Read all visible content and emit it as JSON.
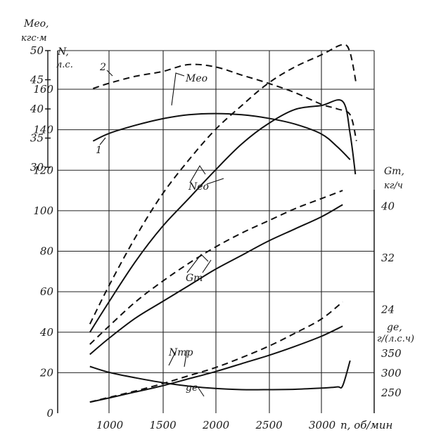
{
  "chart_data": {
    "type": "line",
    "x": {
      "label": "n, об/мин",
      "ticks": [
        1000,
        1500,
        2000,
        2500,
        3000
      ],
      "range": [
        800,
        3350
      ]
    },
    "axes": {
      "power": {
        "title": "N,",
        "unit": "л.с.",
        "ticks": [
          0,
          20,
          40,
          60,
          80,
          100,
          120,
          140,
          160
        ],
        "range": [
          0,
          180
        ]
      },
      "torque": {
        "title": "Mео,",
        "unit": "кгс·м",
        "ticks": [
          30,
          35,
          40,
          45,
          50
        ],
        "range": [
          30,
          50
        ]
      },
      "fuel": {
        "title": "Gт,",
        "unit": "кг/ч",
        "ticks": [
          24,
          32,
          40
        ],
        "range": [
          8,
          48
        ]
      },
      "sfc": {
        "title": "ge,",
        "unit": "г/(л.с.ч)",
        "ticks": [
          250,
          300,
          350
        ],
        "range": [
          200,
          400
        ]
      }
    },
    "annotations": [
      "2",
      "1",
      "Mео",
      "Nео",
      "Gт",
      "Nтр",
      "gе"
    ],
    "series": [
      {
        "axis": "torque",
        "style": "dashed",
        "x": [
          850,
          1000,
          1250,
          1500,
          1750,
          2000,
          2250,
          2500,
          2750,
          3000,
          3150,
          3270,
          3330
        ],
        "y": [
          43.5,
          44.4,
          45.6,
          46.4,
          47.6,
          47.2,
          45.8,
          44.4,
          42.8,
          40.8,
          40.0,
          39.0,
          34.5
        ]
      },
      {
        "axis": "torque",
        "style": "solid",
        "x": [
          850,
          1000,
          1250,
          1500,
          1750,
          2000,
          2250,
          2500,
          2750,
          3000,
          3150,
          3270
        ],
        "y": [
          34.5,
          35.8,
          37.2,
          38.3,
          39.0,
          39.2,
          39.0,
          38.4,
          37.4,
          35.7,
          33.5,
          31.3
        ]
      },
      {
        "axis": "power",
        "style": "dashed",
        "x": [
          820,
          1000,
          1250,
          1500,
          1750,
          2000,
          2250,
          2500,
          2750,
          3000,
          3200,
          3270,
          3330
        ],
        "y": [
          44,
          63,
          87,
          108,
          125,
          140,
          152,
          163,
          171,
          177,
          182,
          178,
          162
        ]
      },
      {
        "axis": "power",
        "style": "solid",
        "x": [
          820,
          1000,
          1250,
          1500,
          1750,
          2000,
          2250,
          2500,
          2750,
          3000,
          3200,
          3270,
          3320
        ],
        "y": [
          40,
          55,
          75,
          92,
          106,
          120,
          133,
          143,
          150,
          152,
          154,
          138,
          118
        ]
      },
      {
        "axis": "power",
        "style": "dashed",
        "x": [
          820,
          1000,
          1250,
          1500,
          1750,
          2000,
          2250,
          2500,
          2750,
          3000,
          3200
        ],
        "y": [
          34,
          43,
          55,
          65,
          74,
          82,
          89,
          95,
          101,
          106,
          110
        ]
      },
      {
        "axis": "power",
        "style": "solid",
        "x": [
          820,
          1000,
          1250,
          1500,
          1750,
          2000,
          2250,
          2500,
          2750,
          3000,
          3200
        ],
        "y": [
          29,
          37,
          47,
          55,
          63,
          71,
          78,
          85,
          91,
          97,
          103
        ]
      },
      {
        "axis": "power",
        "style": "dashed",
        "x": [
          820,
          1000,
          1250,
          1500,
          1750,
          2000,
          2250,
          2500,
          2750,
          3000,
          3200
        ],
        "y": [
          5.5,
          7.8,
          11,
          14.5,
          18.5,
          22.5,
          27.5,
          33,
          39.5,
          46.5,
          55
        ]
      },
      {
        "axis": "power",
        "style": "solid",
        "x": [
          820,
          1000,
          1250,
          1500,
          1750,
          2000,
          2250,
          2500,
          2750,
          3000,
          3200
        ],
        "y": [
          5.5,
          7.5,
          10.5,
          13.5,
          17,
          20.5,
          24.5,
          28.5,
          33,
          38,
          43
        ]
      },
      {
        "axis": "sfc",
        "style": "solid",
        "x": [
          820,
          1000,
          1250,
          1500,
          1750,
          2000,
          2250,
          2500,
          2750,
          3000,
          3150,
          3200,
          3270
        ],
        "y": [
          317,
          302,
          288,
          276,
          267,
          261,
          258,
          258,
          259,
          262,
          265,
          268,
          332
        ]
      }
    ]
  }
}
